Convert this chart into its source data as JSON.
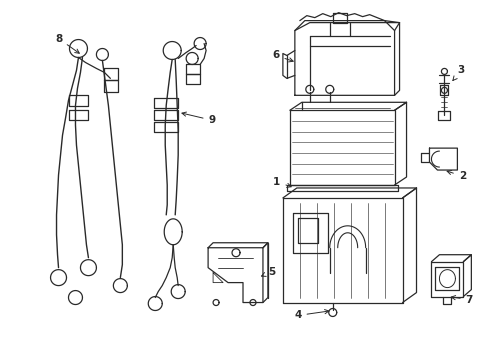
{
  "bg_color": "#ffffff",
  "line_color": "#2a2a2a",
  "lw": 0.9,
  "fig_w": 4.89,
  "fig_h": 3.6,
  "dpi": 100
}
